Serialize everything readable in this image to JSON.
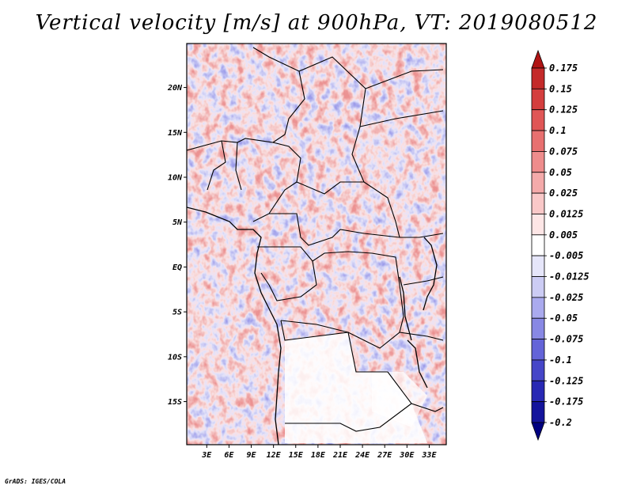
{
  "title": "Vertical velocity [m/s] at 900hPa, VT: 2019080512",
  "credit": "GrADS: IGES/COLA",
  "map": {
    "lat_ticks": [
      "20N",
      "15N",
      "10N",
      "5N",
      "EQ",
      "5S",
      "10S",
      "15S"
    ],
    "lat_values": [
      20,
      15,
      10,
      5,
      0,
      -5,
      -10,
      -15
    ],
    "lon_ticks": [
      "3E",
      "6E",
      "9E",
      "12E",
      "15E",
      "18E",
      "21E",
      "24E",
      "27E",
      "30E",
      "33E"
    ],
    "lon_values": [
      3,
      6,
      9,
      12,
      15,
      18,
      21,
      24,
      27,
      30,
      33
    ],
    "lon_range": [
      0.3,
      35.3
    ],
    "lat_range": [
      -19.8,
      24.9
    ]
  },
  "colorbar": {
    "labels": [
      "0.175",
      "0.15",
      "0.125",
      "0.1",
      "0.075",
      "0.05",
      "0.025",
      "0.0125",
      "0.005",
      "-0.005",
      "-0.0125",
      "-0.025",
      "-0.05",
      "-0.075",
      "-0.1",
      "-0.125",
      "-0.175",
      "-0.2"
    ],
    "colors": [
      "#b01414",
      "#c42a2a",
      "#d43e3e",
      "#e05656",
      "#e87070",
      "#ee8c8c",
      "#f4aaaa",
      "#f9c8c8",
      "#fde6e6",
      "#ffffff",
      "#e6e6fa",
      "#ccccf4",
      "#aaaaee",
      "#8888e4",
      "#6464d8",
      "#4646c8",
      "#2828b4",
      "#14149c",
      "#000080"
    ]
  }
}
